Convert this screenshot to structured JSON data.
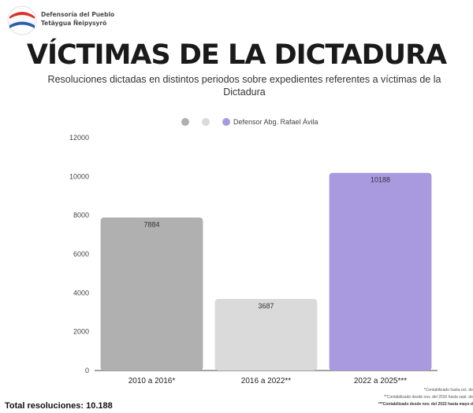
{
  "header": {
    "org_line1": "Defensoría del Pueblo",
    "org_line2": "Tetãygua Ñeipysyrõ"
  },
  "colors": {
    "series1": "#b0b0b0",
    "series2": "#dadada",
    "series3": "#a99ae0"
  },
  "chart_data": {
    "type": "bar",
    "title": "VÍCTIMAS DE LA DICTADURA",
    "subtitle": "Resoluciones dictadas en distintos periodos sobre expedientes referentes a víctimas de la Dictadura",
    "categories": [
      "2010 a 2016*",
      "2016 a 2022**",
      "2022 a 2025***"
    ],
    "values": [
      7884,
      3687,
      10188
    ],
    "data_labels": [
      "7884",
      "3687",
      "10188"
    ],
    "legend": [
      "",
      "",
      "Defensor Abg. Rafael Ávila"
    ],
    "legend_position": "top-center",
    "ylim": [
      0,
      12000
    ],
    "yticks": [
      0,
      2000,
      4000,
      6000,
      8000,
      10000,
      12000
    ],
    "ytick_labels": [
      "0",
      "2000",
      "4000",
      "6000",
      "8000",
      "10000",
      "12000"
    ],
    "grid": false
  },
  "footer": {
    "total": "Total resoluciones: 10.188",
    "note1": "*Contabilizado hasta oct. de",
    "note2": "**Contabilizado desde nov. del 2016 hasta sept. de",
    "note3": "***Contabilizado desde nov. del 2022 hasta mayo d"
  }
}
